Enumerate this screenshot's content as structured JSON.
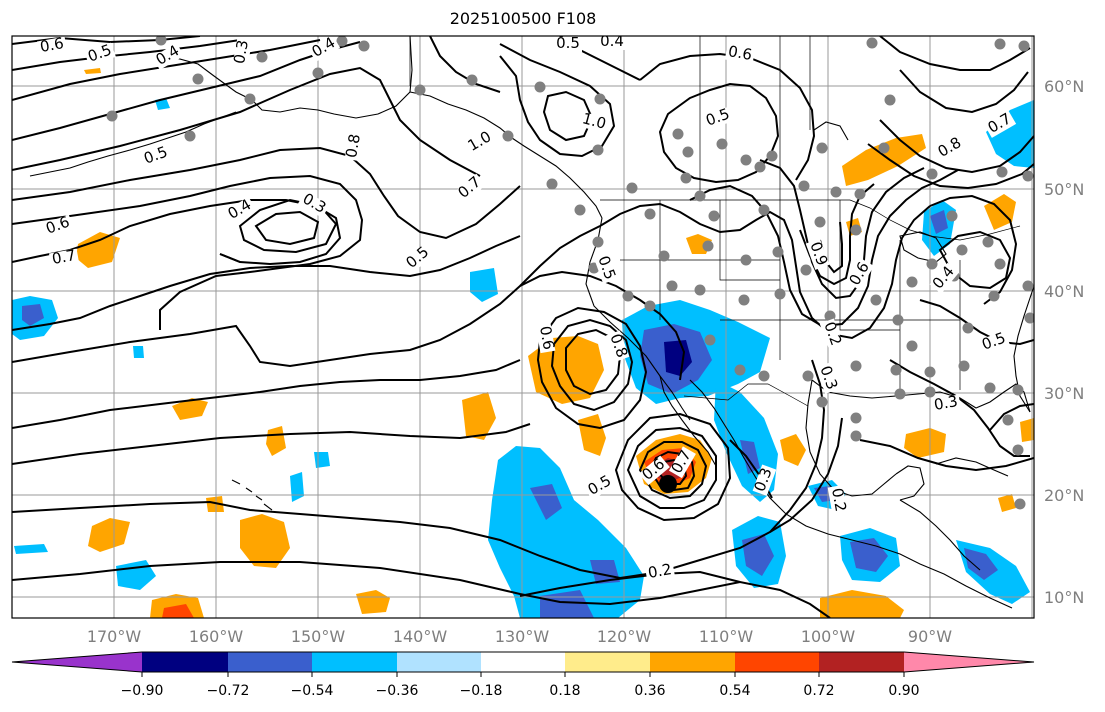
{
  "title": "2025100500 F108",
  "lon_labels": [
    "170°W",
    "160°W",
    "150°W",
    "140°W",
    "130°W",
    "120°W",
    "110°W",
    "100°W",
    "90°W"
  ],
  "lat_labels": [
    "60°N",
    "50°N",
    "40°N",
    "30°N",
    "20°N",
    "10°N"
  ],
  "contour_labels": [
    "0.6",
    "0.5",
    "0.4",
    "0.3",
    "0.4",
    "0.5",
    "0.4",
    "0.6",
    "1.0",
    "0.5",
    "0.8",
    "1.0",
    "0.5",
    "0.7",
    "0.6",
    "0.4",
    "0.3",
    "0.7",
    "0.5",
    "0.5",
    "0.6",
    "0.8",
    "0.6",
    "0.9",
    "0.2",
    "0.3",
    "0.5",
    "0.6",
    "0.7",
    "0.3",
    "0.2",
    "0.2",
    "0.8",
    "0.7",
    "0.4",
    "0.5",
    "0.3"
  ],
  "colorbar": {
    "tick_labels": [
      "−0.90",
      "−0.72",
      "−0.54",
      "−0.36",
      "−0.18",
      "0.18",
      "0.36",
      "0.54",
      "0.72",
      "0.90"
    ],
    "colors": {
      "under": "#9933cc",
      "c1": "#000080",
      "c2": "#3a5fcd",
      "c3": "#00bfff",
      "c4": "#b0e2ff",
      "c5": "#ffffff",
      "c6": "#ffec8b",
      "c7": "#ffa500",
      "c8": "#ff4500",
      "c9": "#b22222",
      "over": "#ff88aa"
    }
  },
  "colors": {
    "positive_fill": "#ffa500",
    "positive_strong": "#ff4500",
    "positive_max": "#b22222",
    "negative_fill": "#00bfff",
    "negative_strong": "#3a5fcd",
    "negative_max": "#000080",
    "station": "#808080",
    "grid": "#999999",
    "label_gray": "#7f7f7f"
  }
}
